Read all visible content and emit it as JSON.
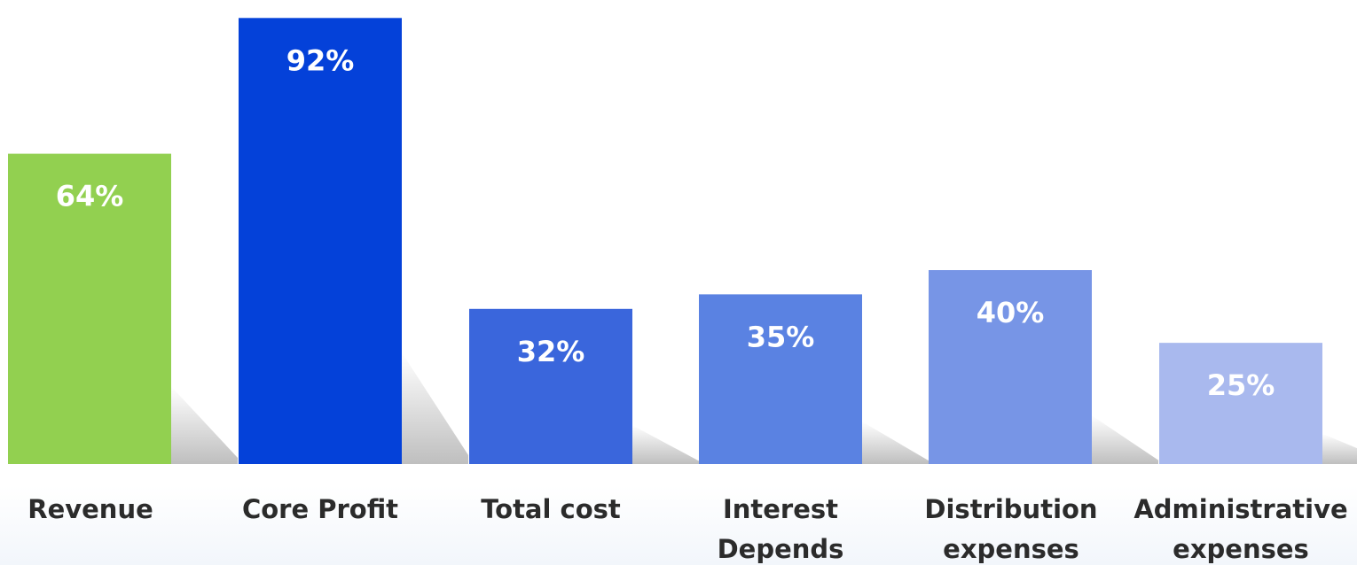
{
  "chart_data": {
    "type": "bar",
    "categories": [
      "Revenue",
      "Core Profit",
      "Total cost",
      "Interest Depends",
      "Distribution expenses",
      "Administrative expenses"
    ],
    "category_lines": [
      [
        "Revenue"
      ],
      [
        "Core Profit"
      ],
      [
        "Total cost"
      ],
      [
        "Interest",
        "Depends"
      ],
      [
        "Distribution",
        "expenses"
      ],
      [
        "Administrative",
        "expenses"
      ]
    ],
    "values": [
      64,
      92,
      32,
      35,
      40,
      25
    ],
    "value_labels": [
      "64%",
      "92%",
      "32%",
      "35%",
      "40%",
      "25%"
    ],
    "unit": "%",
    "ylim": [
      0,
      100
    ],
    "grid": false,
    "legend": "none",
    "colors": [
      "#92d050",
      "#0441d9",
      "#3a66dc",
      "#5a82e2",
      "#7795e6",
      "#a9b9ee"
    ]
  }
}
